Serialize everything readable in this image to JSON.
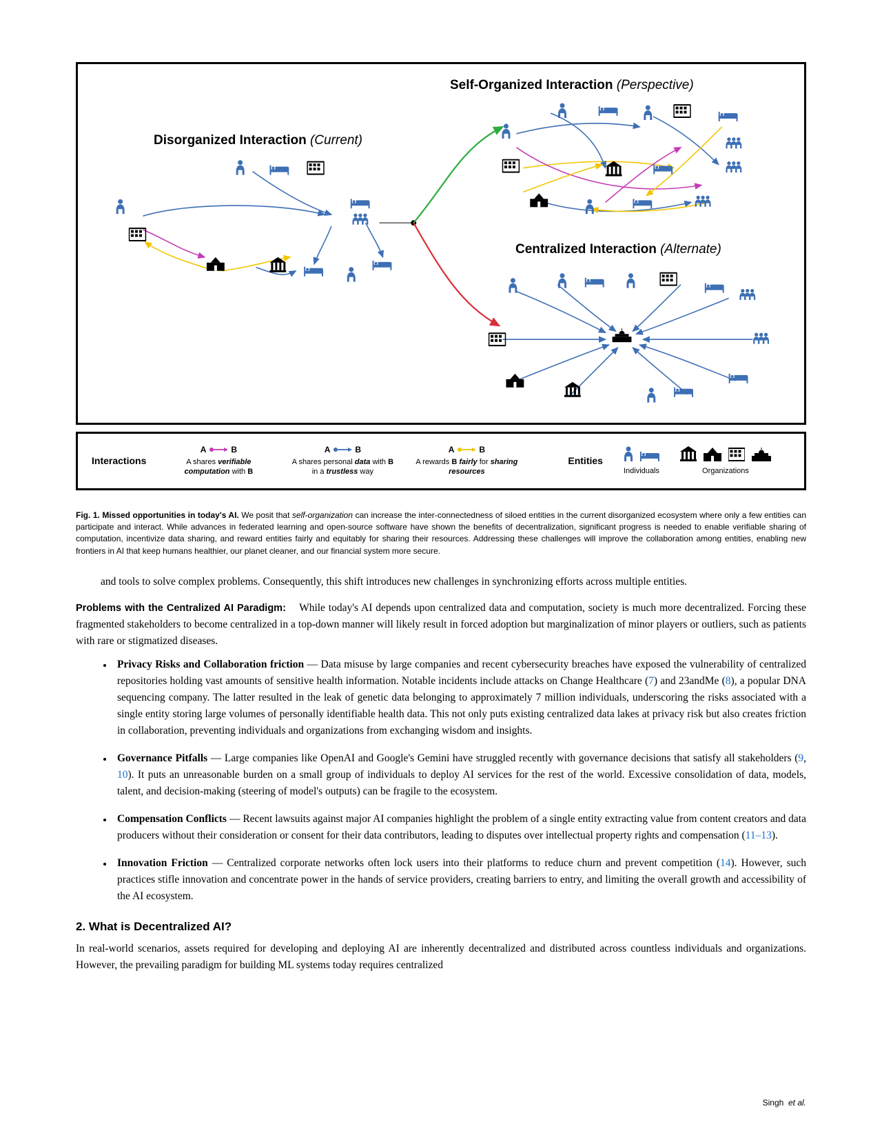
{
  "figure": {
    "titles": {
      "disorganized_bold": "Disorganized Interaction",
      "disorganized_ital": "(Current)",
      "selforganized_bold": "Self-Organized Interaction",
      "selforganized_ital": "(Perspective)",
      "centralized_bold": "Centralized Interaction",
      "centralized_ital": "(Alternate)"
    },
    "colors": {
      "blue": "#3d6fb5",
      "magenta": "#c73ab5",
      "yellow": "#f2c500",
      "green": "#2eab3e",
      "red": "#d8303a",
      "black": "#000000"
    },
    "legend": {
      "interactions_label": "Interactions",
      "entities_label": "Entities",
      "itn1": {
        "ab_a": "A",
        "ab_b": "B",
        "desc": "A shares <b><i>verifiable computation</i></b> with <b>B</b>"
      },
      "itn2": {
        "ab_a": "A",
        "ab_b": "B",
        "desc": "A shares personal <b><i>data</i></b> with <b>B</b> in a <b><i>trustless</i></b> way"
      },
      "itn3": {
        "ab_a": "A",
        "ab_b": "B",
        "desc": "A rewards <b>B</b> <b><i>fairly</i></b> for <b><i>sharing resources</i></b>"
      },
      "individuals": "Individuals",
      "organizations": "Organizations"
    }
  },
  "caption": {
    "label": "Fig. 1. Missed opportunities in today's AI.",
    "text": "We posit that <i>self-organization</i> can increase the inter-connectedness of siloed entities in the current disorganized ecosystem where only a few entities can participate and interact. While advances in federated learning and open-source software have shown the benefits of decentralization, significant progress is needed to enable verifiable sharing of computation, incentivize data sharing, and reward entities fairly and equitably for sharing their resources. Addressing these challenges will improve the collaboration among entities, enabling new frontiers in AI that keep humans healthier, our planet cleaner, and our financial system more secure."
  },
  "body": {
    "continuation": "and tools to solve complex problems. Consequently, this shift introduces new challenges in synchronizing efforts across multiple entities.",
    "problems_heading": "Problems with the Centralized AI Paradigm:",
    "problems_intro": "While today's AI depends upon centralized data and computation, society is much more decentralized. Forcing these fragmented stakeholders to become centralized in a top-down manner will likely result in forced adoption but marginalization of minor players or outliers, such as patients with rare or stigmatized diseases.",
    "b1_title": "Privacy Risks and Collaboration friction",
    "b1_text": " — Data misuse by large companies and recent cybersecurity breaches have exposed the vulnerability of centralized repositories holding vast amounts of sensitive health information. Notable incidents include attacks on Change Healthcare (",
    "b1_cite1": "7",
    "b1_text2": ") and 23andMe (",
    "b1_cite2": "8",
    "b1_text3": "), a popular DNA sequencing company. The latter resulted in the leak of genetic data belonging to approximately 7 million individuals, underscoring the risks associated with a single entity storing large volumes of personally identifiable health data. This not only puts existing centralized data lakes at privacy risk but also creates friction in collaboration, preventing individuals and organizations from exchanging wisdom and insights.",
    "b2_title": "Governance Pitfalls",
    "b2_text": " — Large companies like OpenAI and Google's Gemini have struggled recently with governance decisions that satisfy all stakeholders (",
    "b2_cite1": "9",
    "b2_mid": ", ",
    "b2_cite2": "10",
    "b2_text2": "). It puts an unreasonable burden on a small group of individuals to deploy AI services for the rest of the world. Excessive consolidation of data, models, talent, and decision-making (steering of model's outputs) can be fragile to the ecosystem.",
    "b3_title": "Compensation Conflicts",
    "b3_text": " — Recent lawsuits against major AI companies highlight the problem of a single entity extracting value from content creators and data producers without their consideration or consent for their data contributors, leading to disputes over intellectual property rights and compensation (",
    "b3_cite": "11–13",
    "b3_text2": ").",
    "b4_title": "Innovation Friction",
    "b4_text": " — Centralized corporate networks often lock users into their platforms to reduce churn and prevent competition (",
    "b4_cite": "14",
    "b4_text2": "). However, such practices stifle innovation and concentrate power in the hands of service providers, creating barriers to entry, and limiting the overall growth and accessibility of the AI ecosystem.",
    "sec2_heading": "2.  What is Decentralized AI?",
    "sec2_text": "In real-world scenarios, assets required for developing and deploying AI are inherently decentralized and distributed across countless individuals and organizations. However, the prevailing paradigm for building ML systems today requires centralized"
  },
  "footer": {
    "author": "Singh",
    "etal": "et al."
  }
}
